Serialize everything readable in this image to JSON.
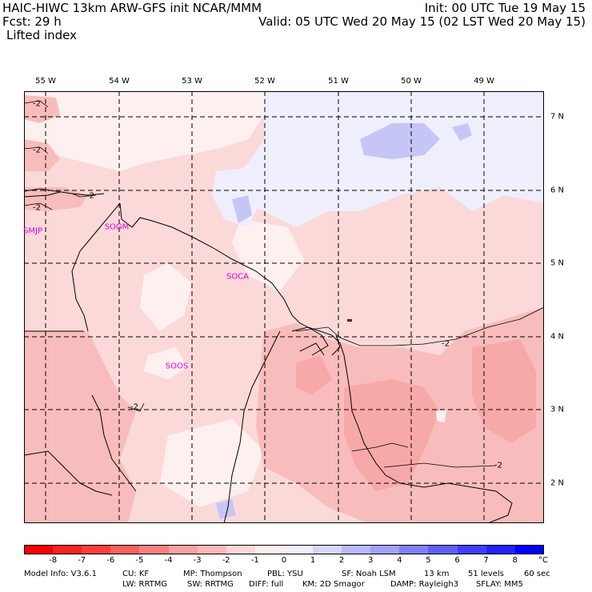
{
  "header": {
    "line1_left": "HAIC-HIWC 13km ARW-GFS init   NCAR/MMM",
    "line2_left": "Fcst:   29 h",
    "line3_left": "Lifted index",
    "line1_right": "Init: 00 UTC Tue 19 May 15",
    "line2_right": "Valid: 05 UTC Wed 20 May 15 (02 LST Wed 20 May 15)"
  },
  "map": {
    "lon_labels": [
      "55 W",
      "54 W",
      "53 W",
      "52 W",
      "51 W",
      "50 W",
      "49 W"
    ],
    "lat_labels": [
      "7 N",
      "6 N",
      "5 N",
      "4 N",
      "3 N",
      "2 N"
    ],
    "stations": [
      "SMJP",
      "SOGM",
      "SOCA",
      "SOOS"
    ],
    "contour_label": "-2",
    "field_colors": {
      "lt_-3": "#f7a9a9",
      "-3_-2": "#f9bcbc",
      "-2_-1": "#fcd9d9",
      "-1_0": "#fff0f0",
      "0_1": "#eeeefd",
      "1_2": "#c6c6f6"
    }
  },
  "colorbar": {
    "labels": [
      "-8",
      "-7",
      "-6",
      "-5",
      "-4",
      "-3",
      "-2",
      "-1",
      "0",
      "1",
      "2",
      "3",
      "4",
      "5",
      "6",
      "7",
      "8"
    ],
    "unit": "°C",
    "colors": [
      "#ff0000",
      "#fd2222",
      "#fb3f3f",
      "#f96060",
      "#f88080",
      "#f9a0a0",
      "#fbb9b9",
      "#fdd6d6",
      "#fff0f0",
      "#f0f0ff",
      "#d6d6fd",
      "#b9b9fb",
      "#a0a0f9",
      "#8080f8",
      "#6060f9",
      "#3f3ffb",
      "#2222fd",
      "#0000ff"
    ]
  },
  "footer": {
    "line1": [
      "Model Info: V3.6.1",
      "CU: KF",
      "MP: Thompson",
      "PBL: YSU",
      "SF: Noah LSM",
      "13 km",
      "51 levels",
      "60 sec"
    ],
    "line2": [
      "LW: RRTMG",
      "SW: RRTMG",
      "DIFF: full",
      "KM: 2D Smagor",
      "DAMP: Rayleigh3",
      "SFLAY: MM5"
    ]
  }
}
